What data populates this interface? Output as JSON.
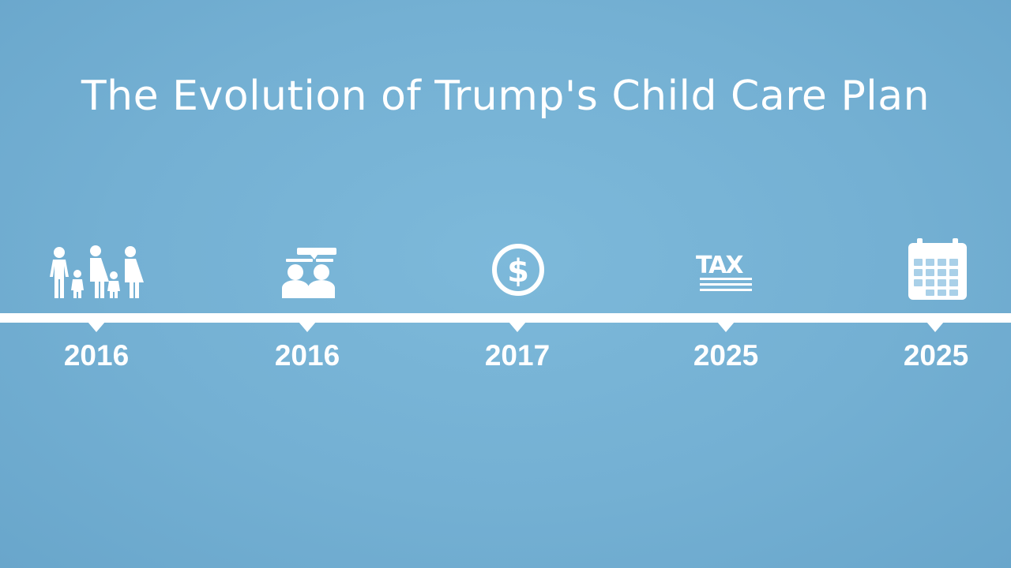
{
  "title": "The Evolution of Trump's Child Care Plan",
  "timeline": [
    {
      "year": "2016",
      "icon": "family-icon"
    },
    {
      "year": "2016",
      "icon": "discussion-icon"
    },
    {
      "year": "2017",
      "icon": "dollar-coin-icon"
    },
    {
      "year": "2025",
      "icon": "tax-icon"
    },
    {
      "year": "2025",
      "icon": "calendar-icon"
    }
  ],
  "colors": {
    "background": "#74b0d3",
    "foreground": "#ffffff"
  }
}
